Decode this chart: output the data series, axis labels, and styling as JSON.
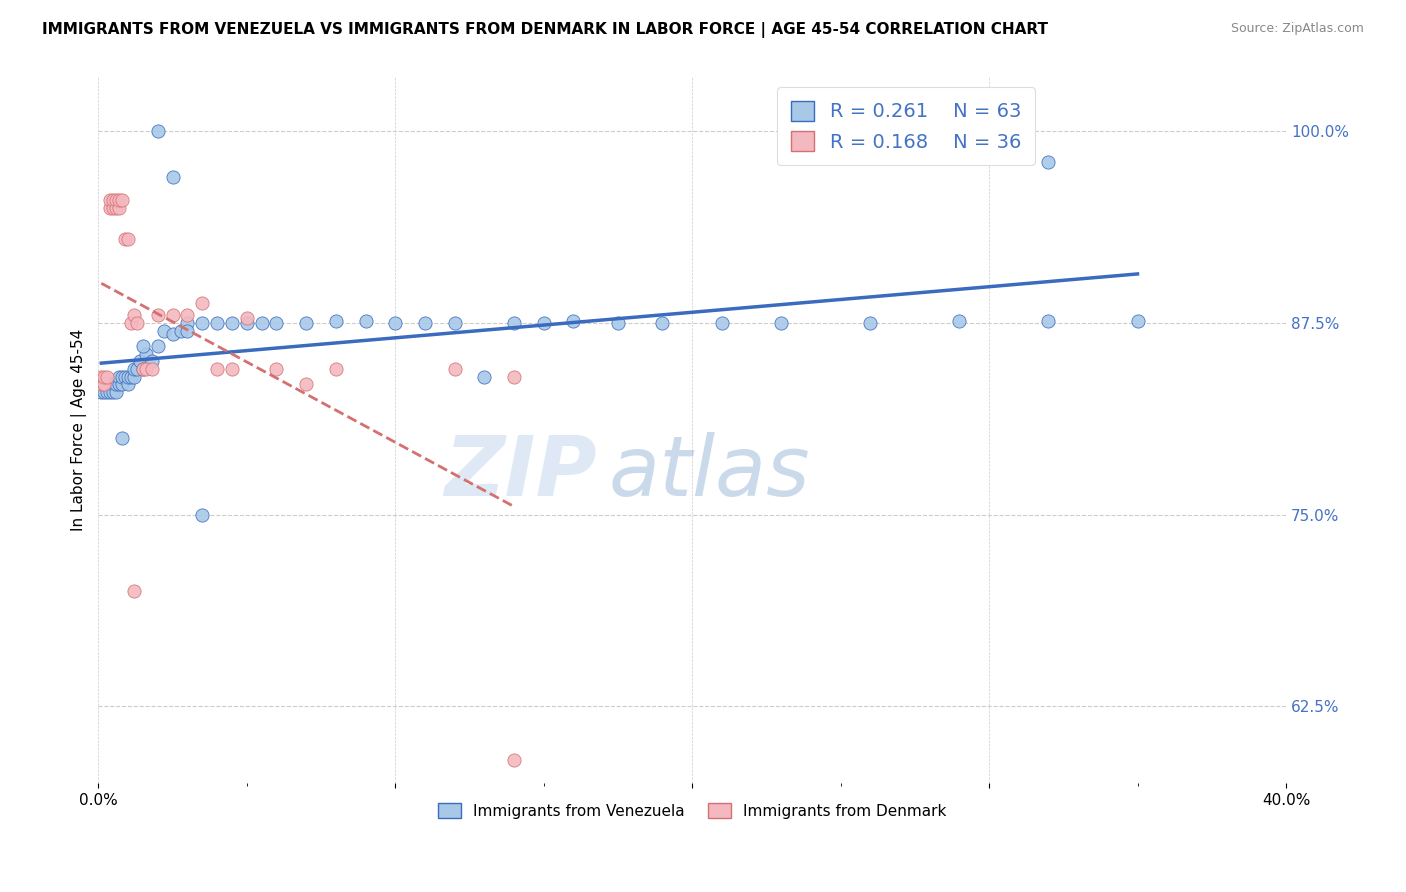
{
  "title": "IMMIGRANTS FROM VENEZUELA VS IMMIGRANTS FROM DENMARK IN LABOR FORCE | AGE 45-54 CORRELATION CHART",
  "source": "Source: ZipAtlas.com",
  "ylabel": "In Labor Force | Age 45-54",
  "r_venezuela": 0.261,
  "n_venezuela": 63,
  "r_denmark": 0.168,
  "n_denmark": 36,
  "legend_label_venezuela": "Immigrants from Venezuela",
  "legend_label_denmark": "Immigrants from Denmark",
  "color_venezuela": "#a8c8e8",
  "color_denmark": "#f4b8c0",
  "trendline_venezuela_color": "#3a6bbf",
  "trendline_denmark_color": "#d47070",
  "r_text_color": "#4472c4",
  "n_text_color": "#00aa00",
  "watermark_zip_color": "#c5d8ef",
  "watermark_atlas_color": "#a0bcdb",
  "xlim": [
    0.0,
    0.4
  ],
  "ylim": [
    0.575,
    1.035
  ],
  "venezuela_x": [
    0.001,
    0.001,
    0.002,
    0.002,
    0.003,
    0.003,
    0.004,
    0.004,
    0.005,
    0.005,
    0.006,
    0.006,
    0.007,
    0.007,
    0.008,
    0.008,
    0.009,
    0.01,
    0.01,
    0.011,
    0.012,
    0.012,
    0.013,
    0.014,
    0.015,
    0.016,
    0.018,
    0.02,
    0.022,
    0.025,
    0.028,
    0.03,
    0.035,
    0.04,
    0.045,
    0.05,
    0.055,
    0.06,
    0.07,
    0.08,
    0.09,
    0.1,
    0.11,
    0.12,
    0.13,
    0.14,
    0.15,
    0.16,
    0.175,
    0.19,
    0.21,
    0.23,
    0.26,
    0.29,
    0.32,
    0.35,
    0.008,
    0.015,
    0.02,
    0.025,
    0.03,
    0.035,
    0.32
  ],
  "venezuela_y": [
    0.83,
    0.835,
    0.83,
    0.835,
    0.83,
    0.835,
    0.83,
    0.835,
    0.83,
    0.835,
    0.83,
    0.835,
    0.835,
    0.84,
    0.835,
    0.84,
    0.84,
    0.835,
    0.84,
    0.84,
    0.84,
    0.845,
    0.845,
    0.85,
    0.845,
    0.855,
    0.85,
    0.86,
    0.87,
    0.868,
    0.87,
    0.875,
    0.875,
    0.875,
    0.875,
    0.875,
    0.875,
    0.875,
    0.875,
    0.876,
    0.876,
    0.875,
    0.875,
    0.875,
    0.84,
    0.875,
    0.875,
    0.876,
    0.875,
    0.875,
    0.875,
    0.875,
    0.875,
    0.876,
    0.876,
    0.876,
    0.8,
    0.86,
    1.0,
    0.97,
    0.87,
    0.75,
    0.98
  ],
  "denmark_x": [
    0.001,
    0.001,
    0.002,
    0.002,
    0.003,
    0.004,
    0.004,
    0.005,
    0.005,
    0.006,
    0.006,
    0.007,
    0.007,
    0.008,
    0.009,
    0.01,
    0.011,
    0.012,
    0.013,
    0.015,
    0.016,
    0.018,
    0.02,
    0.025,
    0.03,
    0.035,
    0.04,
    0.045,
    0.05,
    0.06,
    0.07,
    0.08,
    0.12,
    0.14,
    0.012,
    0.14
  ],
  "denmark_y": [
    0.835,
    0.84,
    0.835,
    0.84,
    0.84,
    0.95,
    0.955,
    0.95,
    0.955,
    0.95,
    0.955,
    0.95,
    0.955,
    0.955,
    0.93,
    0.93,
    0.875,
    0.88,
    0.875,
    0.845,
    0.845,
    0.845,
    0.88,
    0.88,
    0.88,
    0.888,
    0.845,
    0.845,
    0.878,
    0.845,
    0.835,
    0.845,
    0.845,
    0.84,
    0.7,
    0.59
  ]
}
